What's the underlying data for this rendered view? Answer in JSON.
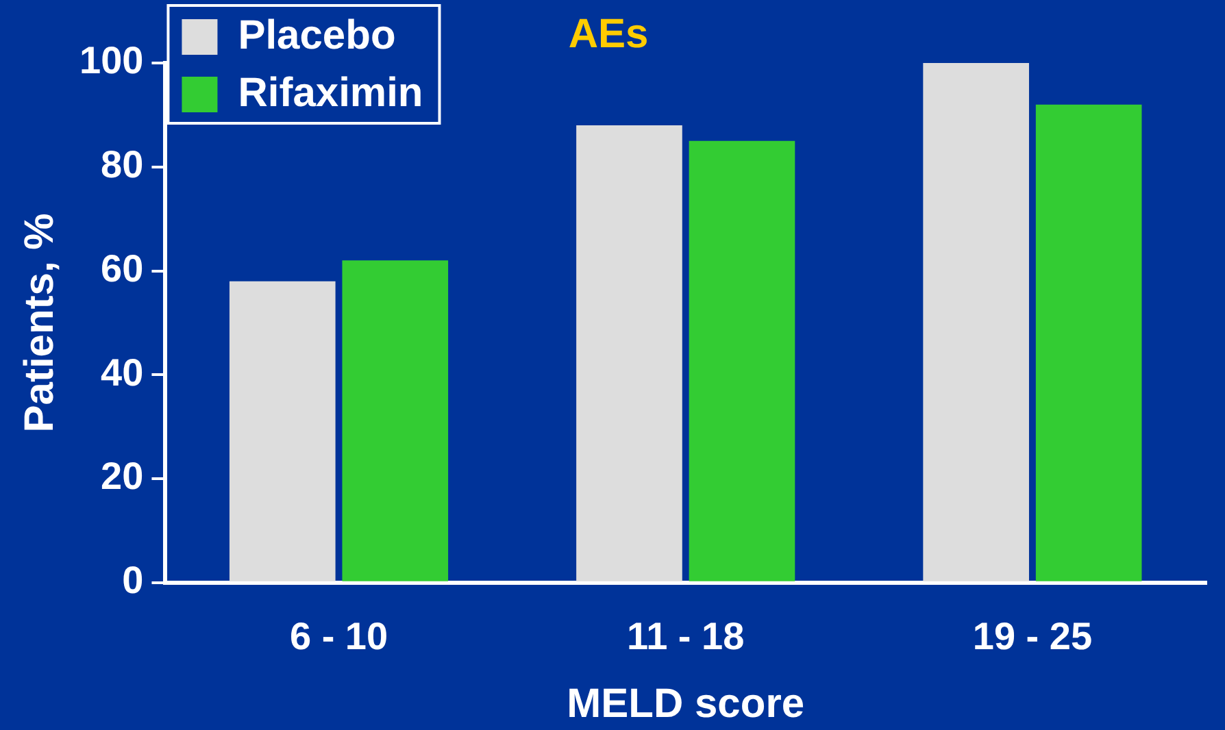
{
  "chart_data": {
    "type": "bar",
    "title": "AEs",
    "xlabel": "MELD score",
    "ylabel": "Patients, %",
    "categories": [
      "6 - 10",
      "11 - 18",
      "19 - 25"
    ],
    "series": [
      {
        "name": "Placebo",
        "color": "#dddddd",
        "values": [
          58,
          88,
          100
        ]
      },
      {
        "name": "Rifaximin",
        "color": "#33cc33",
        "values": [
          62,
          85,
          92
        ]
      }
    ],
    "ylim": [
      0,
      100
    ],
    "yticks": [
      0,
      20,
      40,
      60,
      80,
      100
    ],
    "grid": false,
    "legend": "top left"
  }
}
